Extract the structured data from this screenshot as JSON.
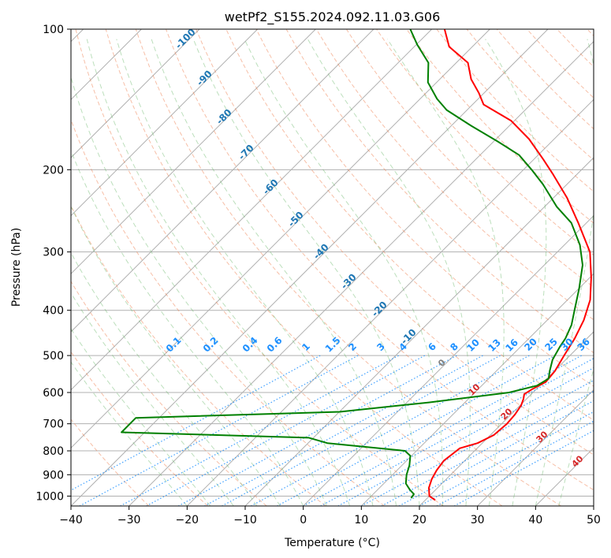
{
  "chart_data": {
    "type": "line",
    "title": "wetPf2_S155.2024.092.11.03.G06",
    "xlabel": "Temperature (°C)",
    "ylabel": "Pressure (hPa)",
    "xlim": [
      -40,
      50
    ],
    "ylim": [
      1050,
      100
    ],
    "y_scale": "log",
    "grid": true,
    "x_ticks": [
      -40,
      -30,
      -20,
      -10,
      0,
      10,
      20,
      30,
      40,
      50
    ],
    "y_ticks": [
      100,
      200,
      300,
      400,
      500,
      600,
      700,
      800,
      900,
      1000
    ],
    "skew": 45,
    "temperature_color": "#ff0000",
    "dewpoint_color": "#008000",
    "series": [
      {
        "role": "temperature",
        "color": "#ff0000",
        "points": [
          [
            21.7,
            1020
          ],
          [
            20.0,
            1000
          ],
          [
            18.5,
            960
          ],
          [
            17.5,
            920
          ],
          [
            16.8,
            880
          ],
          [
            16.4,
            840
          ],
          [
            16.9,
            800
          ],
          [
            17.0,
            790
          ],
          [
            19.2,
            770
          ],
          [
            20.6,
            740
          ],
          [
            20.9,
            700
          ],
          [
            20.7,
            670
          ],
          [
            20.2,
            640
          ],
          [
            19.5,
            620
          ],
          [
            18.8,
            605
          ],
          [
            19.3,
            590
          ],
          [
            20.4,
            570
          ],
          [
            20.1,
            540
          ],
          [
            19.0,
            500
          ],
          [
            17.9,
            460
          ],
          [
            16.3,
            420
          ],
          [
            13.9,
            380
          ],
          [
            10.2,
            340
          ],
          [
            5.6,
            300
          ],
          [
            -1.4,
            260
          ],
          [
            -7.6,
            230
          ],
          [
            -14.0,
            205
          ],
          [
            -18.4,
            190
          ],
          [
            -24.3,
            172
          ],
          [
            -30.6,
            157
          ],
          [
            -38.1,
            145
          ],
          [
            -40.9,
            137
          ],
          [
            -44.6,
            128
          ],
          [
            -48.0,
            118
          ],
          [
            -54.0,
            109
          ],
          [
            -57.8,
            100
          ]
        ]
      },
      {
        "role": "dewpoint",
        "color": "#008000",
        "points": [
          [
            17.2,
            1010
          ],
          [
            17.0,
            990
          ],
          [
            15.6,
            970
          ],
          [
            13.8,
            940
          ],
          [
            12.4,
            900
          ],
          [
            11.3,
            860
          ],
          [
            9.8,
            820
          ],
          [
            8.0,
            800
          ],
          [
            -6.7,
            770
          ],
          [
            -10.8,
            750
          ],
          [
            -44,
            730
          ],
          [
            -44,
            680
          ],
          [
            -9.9,
            660
          ],
          [
            3.8,
            630
          ],
          [
            15.9,
            600
          ],
          [
            19.5,
            580
          ],
          [
            20.3,
            560
          ],
          [
            19.2,
            540
          ],
          [
            17.7,
            510
          ],
          [
            16.8,
            480
          ],
          [
            16.3,
            460
          ],
          [
            15.0,
            430
          ],
          [
            13.0,
            400
          ],
          [
            10.1,
            360
          ],
          [
            6.6,
            320
          ],
          [
            2.7,
            290
          ],
          [
            -2.6,
            260
          ],
          [
            -7.9,
            240
          ],
          [
            -14.1,
            215
          ],
          [
            -18.6,
            200
          ],
          [
            -23.3,
            186
          ],
          [
            -29.3,
            174
          ],
          [
            -36.6,
            161
          ],
          [
            -43.5,
            149
          ],
          [
            -47.1,
            141
          ],
          [
            -51.5,
            130
          ],
          [
            -54.8,
            118
          ],
          [
            -59.8,
            108
          ],
          [
            -63.7,
            100
          ]
        ]
      }
    ],
    "dry_adiabat_labels": [
      "-100",
      "-90",
      "-80",
      "-70",
      "-60",
      "-50",
      "-40",
      "-30",
      "-20",
      "-10"
    ],
    "moist_adiabat_labels": [
      "0",
      "10",
      "20",
      "30",
      "40"
    ],
    "mixing_ratio_labels": [
      "0.1",
      "0.2",
      "0.4",
      "0.6",
      "1",
      "1.5",
      "2",
      "3",
      "4",
      "6",
      "8",
      "10",
      "13",
      "16",
      "20",
      "25",
      "30",
      "36"
    ]
  }
}
